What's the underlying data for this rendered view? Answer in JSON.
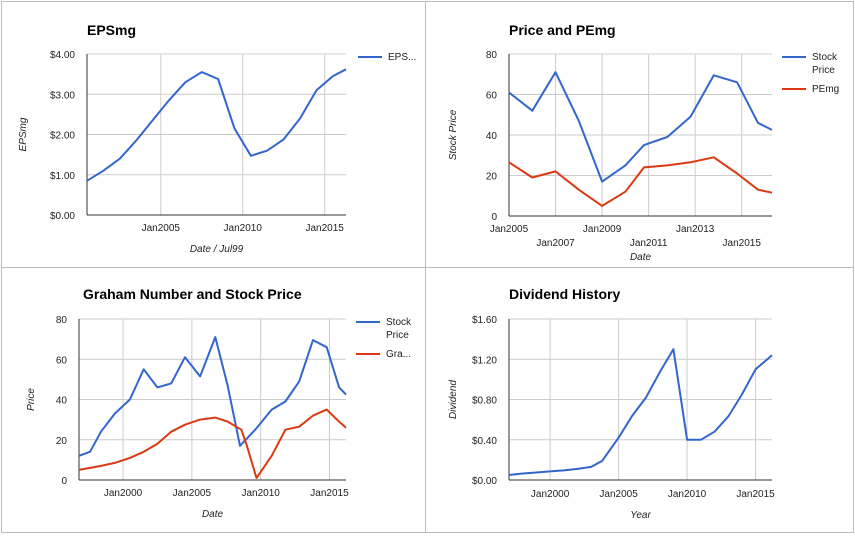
{
  "chart_data": [
    {
      "type": "line",
      "title": "EPSmg",
      "xlabel": "Date / Jul99",
      "ylabel": "EPSmg",
      "ylim": [
        0,
        4
      ],
      "xlim": [
        2000.5,
        2016.3
      ],
      "y_ticks": [
        "$0.00",
        "$1.00",
        "$2.00",
        "$3.00",
        "$4.00"
      ],
      "x_ticks": [
        {
          "label": "Jan2005",
          "x": 2005
        },
        {
          "label": "Jan2010",
          "x": 2010
        },
        {
          "label": "Jan2015",
          "x": 2015
        }
      ],
      "grid": true,
      "legend": "right",
      "series": [
        {
          "name": "EPS...",
          "color": "#3366cc",
          "x": [
            2000.5,
            2001.5,
            2002.5,
            2003.5,
            2004.5,
            2005.5,
            2006.5,
            2007.5,
            2008.5,
            2009.5,
            2010.5,
            2011.5,
            2012.5,
            2013.5,
            2014.5,
            2015.5,
            2016.3
          ],
          "values": [
            0.85,
            1.1,
            1.4,
            1.85,
            2.35,
            2.85,
            3.3,
            3.55,
            3.38,
            2.15,
            1.47,
            1.6,
            1.88,
            2.4,
            3.1,
            3.45,
            3.62
          ]
        }
      ]
    },
    {
      "type": "line",
      "title": "Price and PEmg",
      "xlabel": "Date",
      "ylabel": "Stock Price",
      "ylim": [
        0,
        80
      ],
      "xlim": [
        2005,
        2016.3
      ],
      "y_ticks": [
        "0",
        "20",
        "40",
        "60",
        "80"
      ],
      "x_ticks": [
        {
          "label": "Jan2005",
          "x": 2005,
          "row": 0
        },
        {
          "label": "Jan2007",
          "x": 2007,
          "row": 1
        },
        {
          "label": "Jan2009",
          "x": 2009,
          "row": 0
        },
        {
          "label": "Jan2011",
          "x": 2011,
          "row": 1
        },
        {
          "label": "Jan2013",
          "x": 2013,
          "row": 0
        },
        {
          "label": "Jan2015",
          "x": 2015,
          "row": 1
        }
      ],
      "grid": true,
      "legend": "right",
      "series": [
        {
          "name_lines": [
            "Stock",
            "Price"
          ],
          "color": "#3366cc",
          "x": [
            2005,
            2006,
            2007,
            2008,
            2009,
            2010,
            2010.8,
            2011.8,
            2012.8,
            2013.8,
            2014.8,
            2015.7,
            2016.3
          ],
          "values": [
            61,
            52,
            71,
            47,
            17,
            25,
            35,
            39,
            49,
            69.5,
            66,
            46,
            42.5
          ]
        },
        {
          "name_lines": [
            "PEmg"
          ],
          "color": "#dc3912",
          "x": [
            2005,
            2006,
            2007,
            2008,
            2009,
            2010,
            2010.8,
            2011.8,
            2012.8,
            2013.8,
            2014.8,
            2015.7,
            2016.3
          ],
          "values": [
            26.5,
            19,
            22,
            13,
            5,
            12,
            24,
            25,
            26.5,
            29,
            21,
            13,
            11.5
          ]
        }
      ]
    },
    {
      "type": "line",
      "title": "Graham Number and Stock Price",
      "xlabel": "Date",
      "ylabel": "Price",
      "ylim": [
        0,
        80
      ],
      "xlim": [
        1996.8,
        2016.2
      ],
      "y_ticks": [
        "0",
        "20",
        "40",
        "60",
        "80"
      ],
      "x_ticks": [
        {
          "label": "Jan2000",
          "x": 2000
        },
        {
          "label": "Jan2005",
          "x": 2005
        },
        {
          "label": "Jan2010",
          "x": 2010
        },
        {
          "label": "Jan2015",
          "x": 2015
        }
      ],
      "grid": true,
      "legend": "right",
      "series": [
        {
          "name_lines": [
            "Stock",
            "Price"
          ],
          "color": "#3366cc",
          "x": [
            1996.8,
            1997.6,
            1998.4,
            1999.4,
            2000.5,
            2001.5,
            2002.5,
            2003.5,
            2004.5,
            2005.6,
            2006.7,
            2007.6,
            2008.5,
            2009.6,
            2010.8,
            2011.8,
            2012.8,
            2013.8,
            2014.8,
            2015.7,
            2016.2
          ],
          "values": [
            12,
            14,
            24,
            33,
            40,
            55,
            46,
            48,
            61,
            51.5,
            71,
            47,
            17,
            25,
            35,
            39,
            49,
            69.5,
            66,
            46,
            42.5
          ]
        },
        {
          "name_lines": [
            "Gra..."
          ],
          "color": "#dc3912",
          "x": [
            1996.8,
            1997.6,
            1998.4,
            1999.4,
            2000.5,
            2001.5,
            2002.5,
            2003.5,
            2004.5,
            2005.6,
            2006.7,
            2007.6,
            2008.6,
            2009,
            2009.7,
            2010.8,
            2011.8,
            2012.8,
            2013.8,
            2014.8,
            2015.7,
            2016.2
          ],
          "values": [
            5,
            6,
            7,
            8.5,
            11,
            14,
            18,
            24,
            27.5,
            30,
            31,
            29,
            25,
            17,
            1,
            12,
            25,
            26.5,
            32,
            35,
            29,
            26
          ]
        }
      ]
    },
    {
      "type": "line",
      "title": "Dividend History",
      "xlabel": "Year",
      "ylabel": "Dividend",
      "ylim": [
        0,
        1.6
      ],
      "xlim": [
        1997,
        2016.2
      ],
      "y_ticks": [
        "$0.00",
        "$0.40",
        "$0.80",
        "$1.20",
        "$1.60"
      ],
      "x_ticks": [
        {
          "label": "Jan2000",
          "x": 2000
        },
        {
          "label": "Jan2005",
          "x": 2005
        },
        {
          "label": "Jan2010",
          "x": 2010
        },
        {
          "label": "Jan2015",
          "x": 2015
        }
      ],
      "grid": true,
      "legend": "none",
      "series": [
        {
          "color": "#3366cc",
          "x": [
            1997,
            1998,
            1999,
            2000,
            2001,
            2002,
            2003,
            2003.8,
            2005,
            2006,
            2007,
            2008,
            2009,
            2010,
            2011,
            2012,
            2013,
            2014,
            2015,
            2016.2
          ],
          "values": [
            0.05,
            0.065,
            0.075,
            0.085,
            0.095,
            0.11,
            0.13,
            0.19,
            0.42,
            0.64,
            0.82,
            1.07,
            1.3,
            0.4,
            0.4,
            0.48,
            0.63,
            0.85,
            1.1,
            1.24
          ]
        }
      ]
    }
  ]
}
